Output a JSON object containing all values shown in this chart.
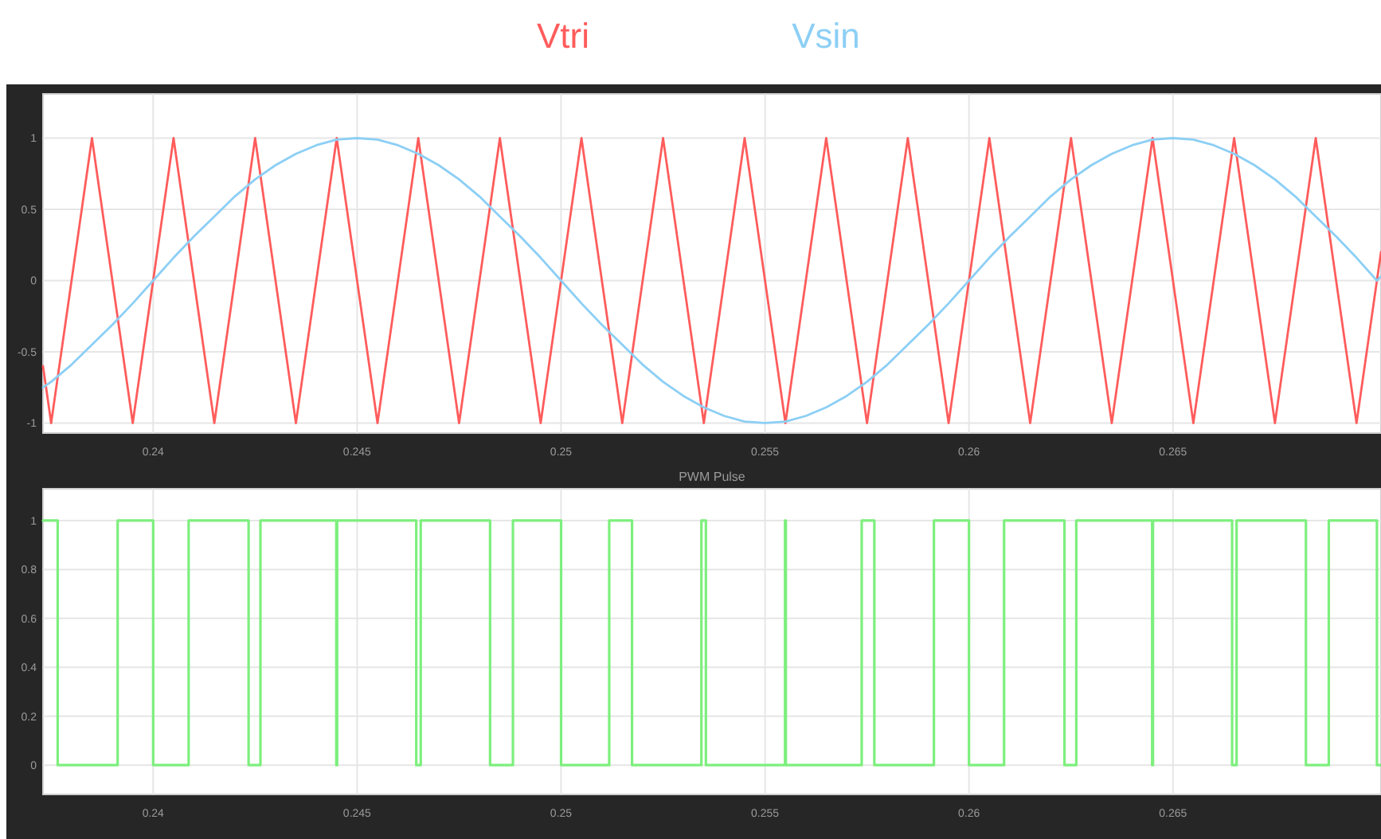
{
  "chart_data": [
    {
      "type": "line",
      "legend": "top",
      "grid": true,
      "xlim": [
        0.2373,
        0.2701
      ],
      "xticks": [
        0.24,
        0.245,
        0.25,
        0.255,
        0.26,
        0.265
      ],
      "ylim": [
        -1.07,
        1.31
      ],
      "yticks": [
        -1,
        -0.5,
        0,
        0.5,
        1
      ],
      "series": [
        {
          "name": "Vtri",
          "color": "#ff5c5c",
          "x": [
            0.2373,
            0.2375,
            0.2385,
            0.2395,
            0.2405,
            0.2415,
            0.2425,
            0.2435,
            0.2445,
            0.2455,
            0.2465,
            0.2475,
            0.2485,
            0.2495,
            0.2505,
            0.2515,
            0.2525,
            0.2535,
            0.2545,
            0.2555,
            0.2565,
            0.2575,
            0.2585,
            0.2595,
            0.2605,
            0.2615,
            0.2625,
            0.2635,
            0.2645,
            0.2655,
            0.2665,
            0.2675,
            0.2685,
            0.2695,
            0.2701
          ],
          "values": [
            -0.6,
            -1,
            1,
            -1,
            1,
            -1,
            1,
            -1,
            1,
            -1,
            1,
            -1,
            1,
            -1,
            1,
            -1,
            1,
            -1,
            1,
            -1,
            1,
            -1,
            1,
            -1,
            1,
            -1,
            1,
            -1,
            1,
            -1,
            1,
            -1,
            1,
            -1,
            0.2
          ]
        },
        {
          "name": "Vsin",
          "color": "#8ccff5",
          "x": [
            0.2373,
            0.2375,
            0.238,
            0.2385,
            0.239,
            0.2395,
            0.24,
            0.2405,
            0.241,
            0.2415,
            0.242,
            0.2425,
            0.243,
            0.2435,
            0.244,
            0.2445,
            0.245,
            0.2455,
            0.246,
            0.2465,
            0.247,
            0.2475,
            0.248,
            0.2485,
            0.249,
            0.2495,
            0.25,
            0.2505,
            0.251,
            0.2515,
            0.252,
            0.2525,
            0.253,
            0.2535,
            0.254,
            0.2545,
            0.255,
            0.2555,
            0.256,
            0.2565,
            0.257,
            0.2575,
            0.258,
            0.2585,
            0.259,
            0.2595,
            0.26,
            0.2605,
            0.261,
            0.2615,
            0.262,
            0.2625,
            0.263,
            0.2635,
            0.264,
            0.2645,
            0.265,
            0.2655,
            0.266,
            0.2665,
            0.267,
            0.2675,
            0.268,
            0.2685,
            0.269,
            0.2695,
            0.27,
            0.2701
          ],
          "values": [
            -0.75,
            -0.71,
            -0.59,
            -0.45,
            -0.31,
            -0.16,
            0,
            0.16,
            0.31,
            0.45,
            0.59,
            0.71,
            0.81,
            0.89,
            0.95,
            0.99,
            1,
            0.99,
            0.95,
            0.89,
            0.81,
            0.71,
            0.59,
            0.45,
            0.31,
            0.16,
            0,
            -0.16,
            -0.31,
            -0.45,
            -0.59,
            -0.71,
            -0.81,
            -0.89,
            -0.95,
            -0.99,
            -1,
            -0.99,
            -0.95,
            -0.89,
            -0.81,
            -0.71,
            -0.59,
            -0.45,
            -0.31,
            -0.16,
            0,
            0.16,
            0.31,
            0.45,
            0.59,
            0.71,
            0.81,
            0.89,
            0.95,
            0.99,
            1,
            0.99,
            0.95,
            0.89,
            0.81,
            0.71,
            0.59,
            0.45,
            0.31,
            0.16,
            0,
            0.03
          ]
        }
      ]
    },
    {
      "type": "step",
      "title": "PWM Pulse",
      "grid": true,
      "xlim": [
        0.2373,
        0.2701
      ],
      "xticks": [
        0.24,
        0.245,
        0.25,
        0.255,
        0.26,
        0.265
      ],
      "ylim": [
        -0.12,
        1.13
      ],
      "yticks": [
        0,
        0.2,
        0.4,
        0.6,
        0.8,
        1
      ],
      "series": [
        {
          "color": "#7def7d",
          "x": [
            0.2373,
            0.23766,
            0.23913,
            0.24,
            0.24087,
            0.24234,
            0.24263,
            0.24449,
            0.24451,
            0.24645,
            0.24656,
            0.24826,
            0.24882,
            0.25,
            0.25118,
            0.25174,
            0.25344,
            0.25355,
            0.25549,
            0.25551,
            0.25737,
            0.25768,
            0.25914,
            0.26,
            0.26086,
            0.26234,
            0.26263,
            0.26449,
            0.26451,
            0.26645,
            0.26656,
            0.26826,
            0.26882,
            0.27,
            0.2701
          ],
          "values": [
            1,
            0,
            1,
            0,
            1,
            0,
            1,
            0,
            1,
            0,
            1,
            0,
            1,
            0,
            1,
            0,
            1,
            0,
            1,
            0,
            1,
            0,
            1,
            0,
            1,
            0,
            1,
            0,
            1,
            0,
            1,
            0,
            1,
            0,
            0
          ]
        }
      ]
    }
  ]
}
